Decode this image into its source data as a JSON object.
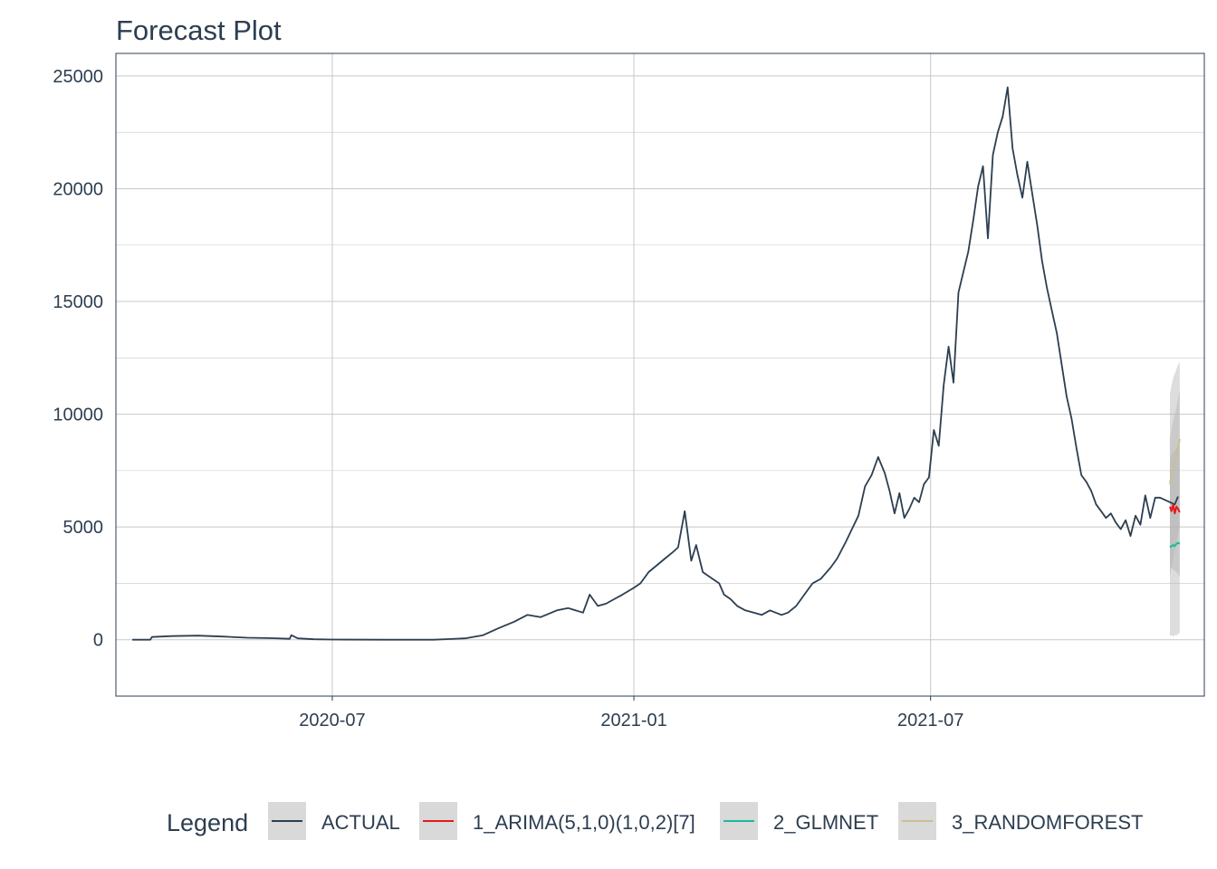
{
  "chart_data": {
    "type": "line",
    "title": "Forecast Plot",
    "xlabel": "",
    "ylabel": "",
    "x_range": [
      "2020-02-20",
      "2021-12-15"
    ],
    "ylim": [
      -2500,
      26000
    ],
    "y_ticks": [
      0,
      5000,
      10000,
      15000,
      20000,
      25000
    ],
    "y_tick_labels": [
      "0",
      "5000",
      "10000",
      "15000",
      "20000",
      "25000"
    ],
    "x_ticks": [
      "2020-07-01",
      "2021-01-01",
      "2021-07-01"
    ],
    "x_tick_labels": [
      "2020-07",
      "2021-01",
      "2021-07"
    ],
    "grid": true,
    "legend_title": "Legend",
    "legend_position": "bottom",
    "series": [
      {
        "name": "ACTUAL",
        "color": "#2c3e50",
        "x": [
          "2020-03-01",
          "2020-03-12",
          "2020-03-13",
          "2020-03-25",
          "2020-04-10",
          "2020-04-25",
          "2020-05-10",
          "2020-05-25",
          "2020-06-05",
          "2020-06-06",
          "2020-06-10",
          "2020-06-15",
          "2020-06-20",
          "2020-07-01",
          "2020-08-01",
          "2020-09-01",
          "2020-09-10",
          "2020-09-20",
          "2020-10-01",
          "2020-10-10",
          "2020-10-20",
          "2020-10-28",
          "2020-11-05",
          "2020-11-15",
          "2020-11-22",
          "2020-12-01",
          "2020-12-05",
          "2020-12-10",
          "2020-12-15",
          "2020-12-20",
          "2020-12-25",
          "2021-01-01",
          "2021-01-05",
          "2021-01-10",
          "2021-01-15",
          "2021-01-20",
          "2021-01-25",
          "2021-01-28",
          "2021-02-01",
          "2021-02-05",
          "2021-02-08",
          "2021-02-12",
          "2021-02-18",
          "2021-02-22",
          "2021-02-25",
          "2021-03-01",
          "2021-03-05",
          "2021-03-10",
          "2021-03-15",
          "2021-03-20",
          "2021-03-25",
          "2021-04-01",
          "2021-04-05",
          "2021-04-10",
          "2021-04-15",
          "2021-04-20",
          "2021-04-25",
          "2021-05-01",
          "2021-05-05",
          "2021-05-10",
          "2021-05-14",
          "2021-05-18",
          "2021-05-22",
          "2021-05-26",
          "2021-05-30",
          "2021-06-03",
          "2021-06-06",
          "2021-06-09",
          "2021-06-12",
          "2021-06-15",
          "2021-06-18",
          "2021-06-21",
          "2021-06-24",
          "2021-06-27",
          "2021-06-30",
          "2021-07-03",
          "2021-07-06",
          "2021-07-09",
          "2021-07-12",
          "2021-07-15",
          "2021-07-18",
          "2021-07-21",
          "2021-07-24",
          "2021-07-27",
          "2021-07-30",
          "2021-08-02",
          "2021-08-05",
          "2021-08-08",
          "2021-08-11",
          "2021-08-14",
          "2021-08-17",
          "2021-08-20",
          "2021-08-23",
          "2021-08-26",
          "2021-08-29",
          "2021-09-01",
          "2021-09-04",
          "2021-09-07",
          "2021-09-10",
          "2021-09-13",
          "2021-09-16",
          "2021-09-19",
          "2021-09-22",
          "2021-09-25",
          "2021-09-28",
          "2021-10-01",
          "2021-10-04",
          "2021-10-07",
          "2021-10-10",
          "2021-10-13",
          "2021-10-16",
          "2021-10-19",
          "2021-10-22",
          "2021-10-25",
          "2021-10-28",
          "2021-10-31",
          "2021-11-03",
          "2021-11-06",
          "2021-11-09",
          "2021-11-12",
          "2021-11-15",
          "2021-11-18",
          "2021-11-21",
          "2021-11-24",
          "2021-11-27",
          "2021-11-29"
        ],
        "y": [
          0,
          0,
          120,
          160,
          180,
          140,
          90,
          70,
          40,
          200,
          60,
          40,
          20,
          10,
          0,
          0,
          30,
          60,
          200,
          500,
          800,
          1100,
          1000,
          1300,
          1400,
          1200,
          2000,
          1500,
          1600,
          1800,
          2000,
          2300,
          2500,
          3000,
          3300,
          3600,
          3900,
          4100,
          5700,
          3500,
          4200,
          3000,
          2700,
          2500,
          2000,
          1800,
          1500,
          1300,
          1200,
          1100,
          1300,
          1100,
          1200,
          1500,
          2000,
          2500,
          2700,
          3200,
          3600,
          4300,
          4900,
          5500,
          6800,
          7300,
          8100,
          7400,
          6600,
          5600,
          6500,
          5400,
          5800,
          6300,
          6100,
          6900,
          7200,
          9300,
          8600,
          11300,
          13000,
          11400,
          15400,
          16300,
          17200,
          18600,
          20100,
          21000,
          17800,
          21500,
          22500,
          23200,
          24500,
          21800,
          20600,
          19600,
          21200,
          19800,
          18400,
          16800,
          15600,
          14600,
          13600,
          12200,
          10800,
          9800,
          8500,
          7300,
          7000,
          6600,
          6000,
          5700,
          5400,
          5600,
          5200,
          4900,
          5300,
          4600,
          5500,
          5100,
          6400,
          5400,
          6300,
          6300,
          6200,
          6100,
          6000,
          6350
        ]
      },
      {
        "name": "1_ARIMA(5,1,0)(1,0,2)[7]",
        "color": "#e31a1c",
        "x": [
          "2021-11-24",
          "2021-11-25",
          "2021-11-26",
          "2021-11-27",
          "2021-11-28",
          "2021-11-29",
          "2021-11-30"
        ],
        "y": [
          5900,
          5700,
          6000,
          5600,
          5900,
          5800,
          5650
        ],
        "ci_low": [
          3300,
          3200,
          3100,
          3050,
          3000,
          2900,
          2800
        ],
        "ci_high": [
          8900,
          9400,
          9700,
          10000,
          10300,
          10700,
          11100
        ]
      },
      {
        "name": "2_GLMNET",
        "color": "#18bc9c",
        "x": [
          "2021-11-24",
          "2021-11-25",
          "2021-11-26",
          "2021-11-27",
          "2021-11-28",
          "2021-11-29",
          "2021-11-30"
        ],
        "y": [
          4100,
          4150,
          4200,
          4150,
          4250,
          4300,
          4250
        ],
        "ci_low": [
          150,
          200,
          150,
          200,
          200,
          250,
          300
        ],
        "ci_high": [
          8000,
          8200,
          8300,
          8400,
          8500,
          8600,
          8600
        ]
      },
      {
        "name": "3_RANDOMFOREST",
        "color": "#ccbe93",
        "x": [
          "2021-11-24",
          "2021-11-25",
          "2021-11-26",
          "2021-11-27",
          "2021-11-28",
          "2021-11-29",
          "2021-11-30"
        ],
        "y": [
          6900,
          7300,
          7600,
          7900,
          8200,
          8500,
          8900
        ],
        "ci_low": [
          2800,
          3200,
          3600,
          4000,
          4300,
          4700,
          5100
        ],
        "ci_high": [
          10900,
          11300,
          11600,
          11800,
          12000,
          12200,
          12300
        ]
      }
    ]
  }
}
